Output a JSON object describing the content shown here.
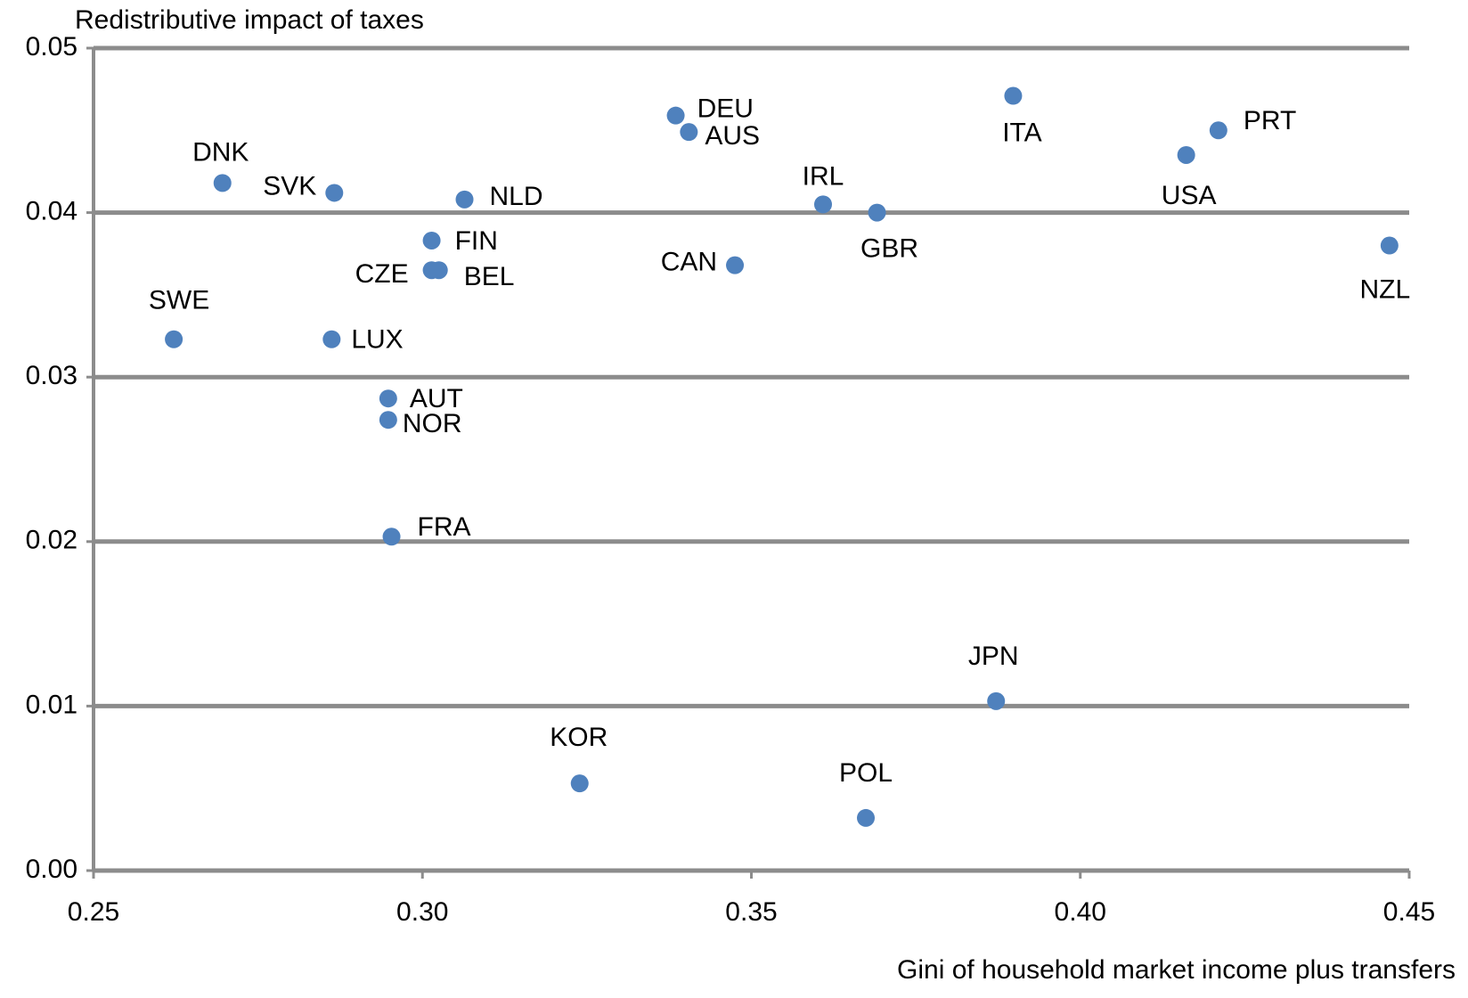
{
  "chart_data": {
    "type": "scatter",
    "title": "Redistributive impact of taxes",
    "x_label": "Gini of household market income plus transfers",
    "labels": [
      "DNK",
      "SVK",
      "NLD",
      "SWE",
      "LUX",
      "FIN",
      "CZE",
      "BEL",
      "AUT",
      "NOR",
      "FRA",
      "DEU",
      "AUS",
      "CAN",
      "IRL",
      "GBR",
      "ITA",
      "USA",
      "PRT",
      "NZL",
      "JPN",
      "KOR",
      "POL"
    ],
    "x": [
      0.2696,
      0.2866,
      0.3064,
      0.2622,
      0.2862,
      0.3014,
      0.3014,
      0.3025,
      0.2948,
      0.2948,
      0.2953,
      0.3385,
      0.3405,
      0.3475,
      0.3609,
      0.3691,
      0.3898,
      0.4161,
      0.421,
      0.447,
      0.3872,
      0.3239,
      0.3674
    ],
    "values": [
      0.0418,
      0.0412,
      0.0408,
      0.0323,
      0.0323,
      0.0383,
      0.0365,
      0.0365,
      0.0287,
      0.0274,
      0.0203,
      0.0459,
      0.0449,
      0.0368,
      0.0405,
      0.04,
      0.0471,
      0.0435,
      0.045,
      0.038,
      0.0103,
      0.0053,
      0.0032
    ],
    "color": "#4f81bd",
    "xlim": [
      0.25,
      0.45
    ],
    "xticks": [
      0.25,
      {
        "value": 0.3,
        "label": "0.30"
      },
      0.35,
      {
        "value": 0.4,
        "label": "0.40"
      },
      0.45
    ],
    "ylim": [
      0,
      0.05
    ],
    "yticks": [
      {
        "value": 0,
        "label": "0.00"
      },
      0.01,
      0.02,
      0.03,
      0.04,
      0.05
    ],
    "grid": true
  }
}
